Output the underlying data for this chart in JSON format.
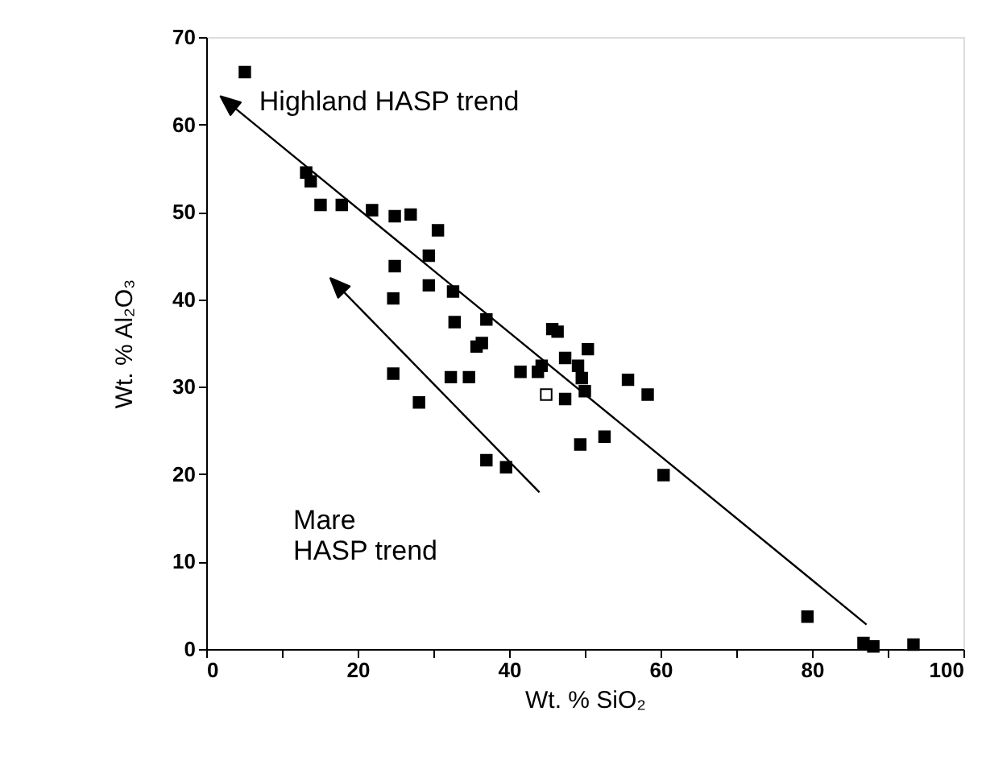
{
  "chart_data": {
    "type": "scatter",
    "xlabel": "Wt. % SiO₂",
    "ylabel": "Wt. % Al₂O₃",
    "xlim": [
      0,
      100
    ],
    "ylim": [
      0,
      70
    ],
    "xticks": [
      0,
      {
        "value": 10,
        "label": null
      },
      20,
      {
        "value": 30,
        "label": null
      },
      40,
      {
        "value": 50,
        "label": null
      },
      60,
      {
        "value": 70,
        "label": null
      },
      80,
      {
        "value": 90,
        "label": null
      },
      100
    ],
    "yticks": [
      0,
      10,
      20,
      30,
      40,
      50,
      60,
      70
    ],
    "grid": false,
    "marker": "square",
    "series": [
      {
        "color": "#000000",
        "x": [
          5.1,
          13.2,
          13.8,
          15.1,
          17.9,
          21.9,
          24.9,
          27,
          30.6,
          29.4,
          24.9,
          24.7,
          29.4,
          32.6,
          32.8,
          37,
          35.7,
          36.4,
          24.7,
          32.3,
          34.7,
          28.1,
          37,
          39.6,
          45.7,
          46.4,
          44.3,
          43.8,
          41.5,
          47.4,
          49.1,
          50.4,
          49.6,
          50,
          47.4,
          55.7,
          58.3,
          49.4,
          52.6,
          60.4,
          79.4,
          86.8,
          88.1,
          93.4
        ],
        "values": [
          66,
          54.5,
          53.5,
          50.8,
          50.8,
          50.2,
          49.5,
          49.7,
          47.9,
          45,
          43.8,
          40.1,
          41.6,
          40.9,
          37.4,
          37.7,
          34.6,
          35,
          31.5,
          31.1,
          31.1,
          28.2,
          21.6,
          20.8,
          36.6,
          36.3,
          32.4,
          31.7,
          31.7,
          33.3,
          32.4,
          34.3,
          31,
          29.5,
          28.6,
          30.8,
          29.1,
          23.4,
          24.3,
          19.9,
          3.7,
          0.7,
          0.3,
          0.5
        ]
      },
      {
        "color": "#ffffff",
        "x": [
          44.9
        ],
        "values": [
          29.1
        ]
      }
    ],
    "annotations": [
      "Highland HASP trend",
      "Mare\nHASP trend"
    ]
  }
}
